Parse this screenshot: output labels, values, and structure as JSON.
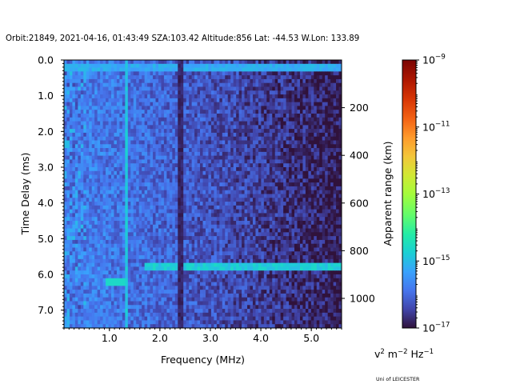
{
  "header": {
    "title": "Orbit:21849, 2021-04-16, 01:43:49 SZA:103.42 Altitude:856 Lat: -44.53 W.Lon: 133.89"
  },
  "footer": {
    "credit": "Uni of LEICESTER"
  },
  "colorbar": {
    "units_base": "v",
    "units_sup1": "2",
    "units_mid": " m",
    "units_sup2": "−2",
    "units_mid2": " Hz",
    "units_sup3": "−1",
    "label_base": "10",
    "tick_exponents": [
      "−9",
      "−11",
      "−13",
      "−15",
      "−17"
    ],
    "log_range": [
      -17,
      -9
    ],
    "colormap": "turbo"
  },
  "chart_data": {
    "type": "heatmap",
    "title": "Orbit:21849, 2021-04-16, 01:43:49 SZA:103.42 Altitude:856 Lat: -44.53 W.Lon: 133.89",
    "xlabel": "Frequency (MHz)",
    "ylabel": "Time Delay (ms)",
    "y2label": "Apparent range (km)",
    "xlim": [
      0.1,
      5.6
    ],
    "ylim": [
      7.5,
      0.0
    ],
    "x_ticks": [
      1.0,
      2.0,
      3.0,
      4.0,
      5.0
    ],
    "x_tick_labels": [
      "1.0",
      "2.0",
      "3.0",
      "4.0",
      "5.0"
    ],
    "y_ticks": [
      0.0,
      1.0,
      2.0,
      3.0,
      4.0,
      5.0,
      6.0,
      7.0
    ],
    "y_tick_labels": [
      "0.0",
      "1.0",
      "2.0",
      "3.0",
      "4.0",
      "5.0",
      "6.0",
      "7.0"
    ],
    "y2_ticks_km": [
      200,
      400,
      600,
      800,
      1000
    ],
    "y2_tick_labels": [
      "200",
      "400",
      "600",
      "800",
      "1000"
    ],
    "y2_km_per_ms": 149.9,
    "grid": false,
    "features": {
      "background_log_power": {
        "low_freq": -15.7,
        "high_freq": -16.9
      },
      "horizontal_echo": {
        "delay_ms": 5.78,
        "from_mhz": 1.7,
        "to_mhz": 5.6,
        "log_power": -14.8
      },
      "top_row_echo": {
        "delay_ms": 0.2,
        "from_mhz": 0.1,
        "to_mhz": 5.6,
        "log_power": -15.2
      },
      "short_echo": {
        "delay_ms": 6.22,
        "from_mhz": 0.9,
        "to_mhz": 1.3,
        "log_power": -14.6
      },
      "bright_column": {
        "freq_mhz": 1.33,
        "log_power": -14.9
      },
      "dark_column": {
        "freq_mhz": 2.4,
        "log_power": -16.95
      },
      "bright_patch": {
        "freq_mhz": 0.12,
        "delay_ms": 2.35,
        "log_power": -15.0
      }
    }
  }
}
